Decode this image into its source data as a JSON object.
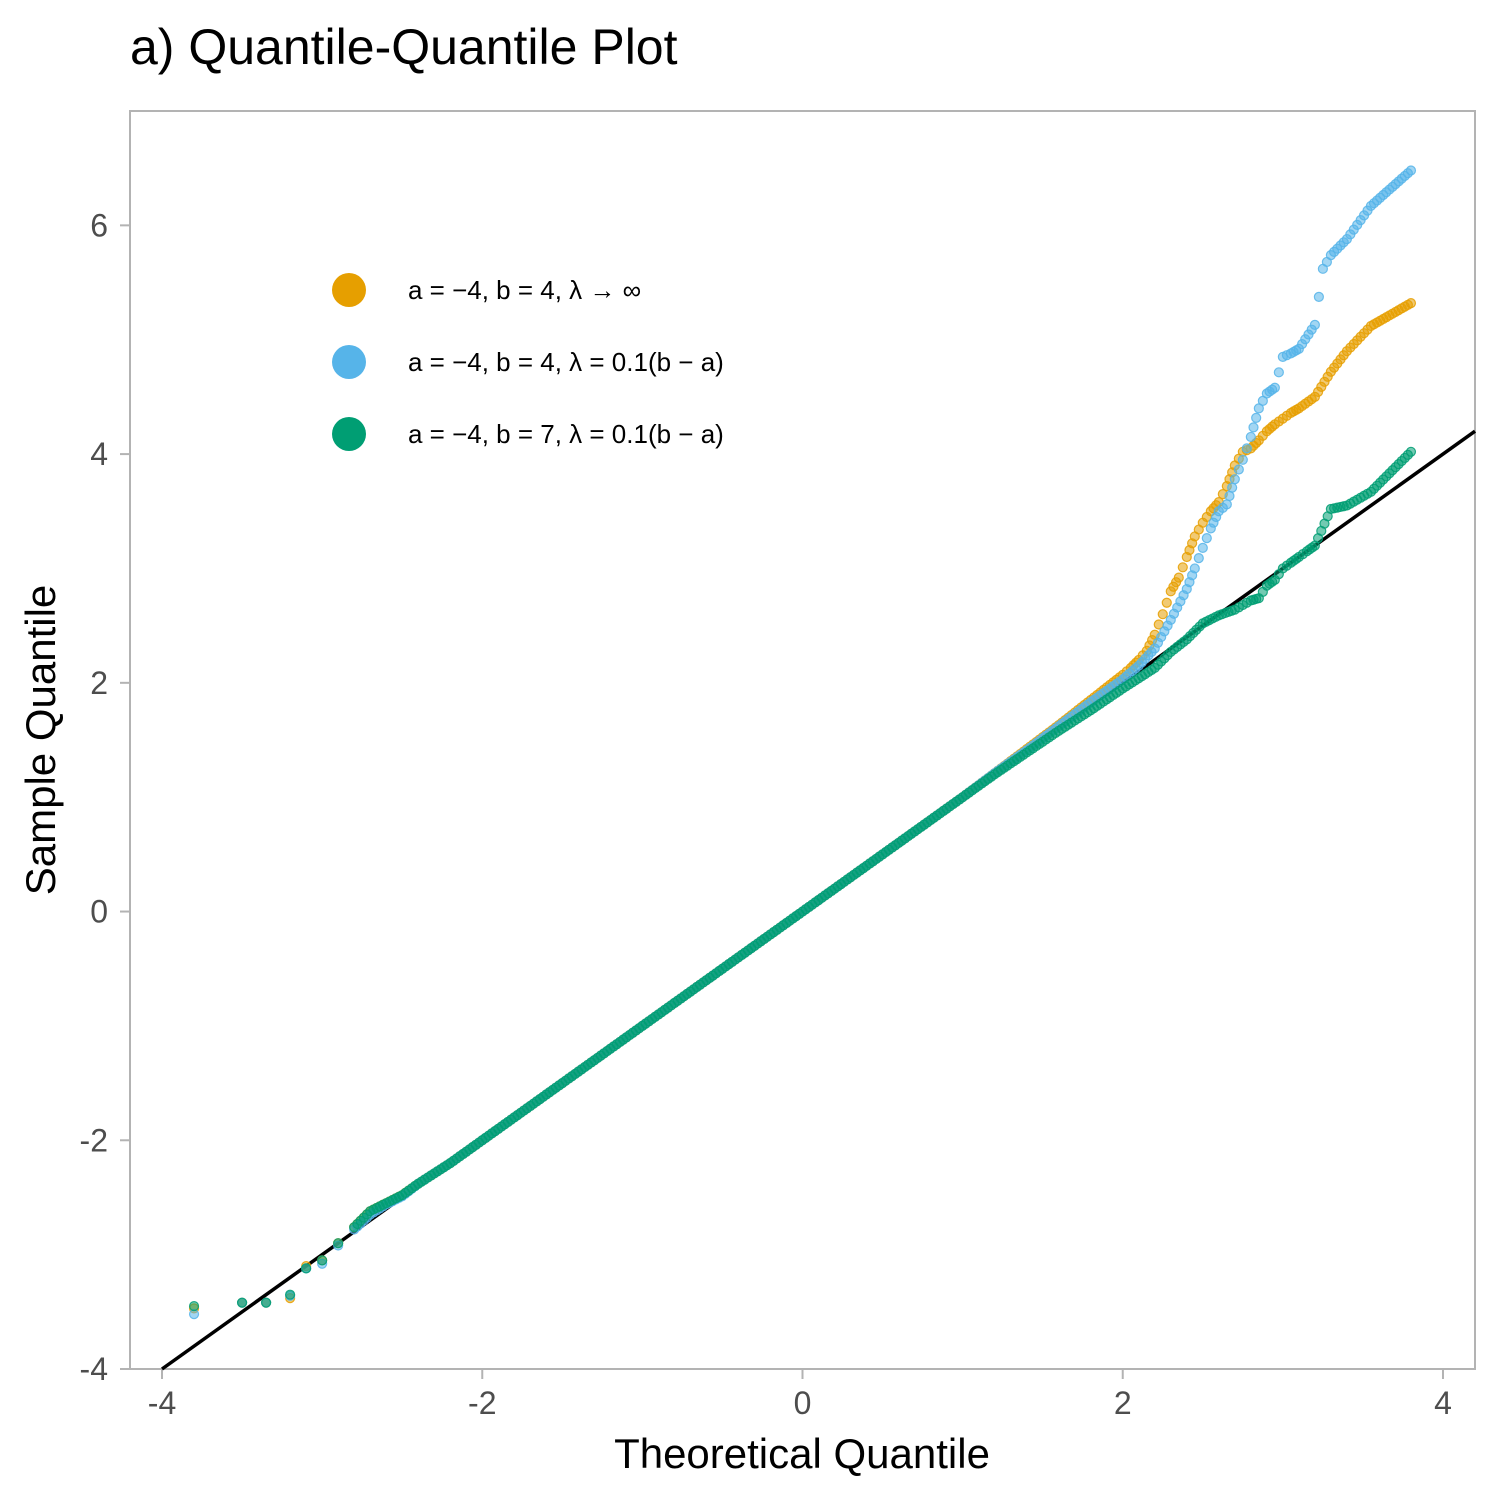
{
  "chart_data": {
    "type": "scatter",
    "title": "a) Quantile-Quantile Plot",
    "xlabel": "Theoretical Quantile",
    "ylabel": "Sample Quantile",
    "xlim": [
      -4.2,
      4.2
    ],
    "ylim": [
      -4,
      7
    ],
    "x_ticks": [
      -4,
      -2,
      0,
      2,
      4
    ],
    "x_tick_labels": [
      "-4",
      "-2",
      "0",
      "2",
      "4"
    ],
    "y_ticks": [
      -4,
      -2,
      0,
      2,
      4,
      6
    ],
    "y_tick_labels": [
      "-4",
      "-2",
      "0",
      "2",
      "4",
      "6"
    ],
    "grid": false,
    "legend_position": "top-left inside",
    "reference_line": {
      "intercept": 0,
      "slope": 1
    },
    "series": [
      {
        "name": "a = −4, b = 4, λ → ∞",
        "color": "#E69F00",
        "x": [
          -3.8,
          -3.5,
          -3.35,
          -3.2,
          -3.1,
          -3.0,
          -2.9,
          -2.8,
          -2.7,
          -2.6,
          -2.5,
          -2.4,
          -2.3,
          -2.2,
          -2.1,
          -2.0,
          -1.8,
          -1.6,
          -1.4,
          -1.2,
          -1.0,
          -0.8,
          -0.6,
          -0.4,
          -0.2,
          0.0,
          0.2,
          0.4,
          0.6,
          0.8,
          1.0,
          1.2,
          1.4,
          1.6,
          1.8,
          2.0,
          2.05,
          2.1,
          2.15,
          2.2,
          2.25,
          2.3,
          2.35,
          2.4,
          2.45,
          2.5,
          2.55,
          2.6,
          2.65,
          2.7,
          2.75,
          2.8,
          2.85,
          2.9,
          2.95,
          3.0,
          3.05,
          3.1,
          3.2,
          3.3,
          3.4,
          3.55,
          3.8
        ],
        "y": [
          -3.47,
          -3.42,
          -3.42,
          -3.38,
          -3.1,
          -3.05,
          -2.9,
          -2.76,
          -2.62,
          -2.55,
          -2.48,
          -2.38,
          -2.29,
          -2.2,
          -2.1,
          -2.0,
          -1.8,
          -1.6,
          -1.4,
          -1.2,
          -1.0,
          -0.8,
          -0.6,
          -0.4,
          -0.2,
          0.0,
          0.2,
          0.4,
          0.6,
          0.8,
          1.0,
          1.21,
          1.42,
          1.63,
          1.85,
          2.07,
          2.13,
          2.2,
          2.28,
          2.42,
          2.6,
          2.8,
          2.92,
          3.1,
          3.28,
          3.4,
          3.5,
          3.58,
          3.72,
          3.9,
          4.02,
          4.05,
          4.12,
          4.2,
          4.26,
          4.31,
          4.36,
          4.4,
          4.5,
          4.72,
          4.9,
          5.12,
          5.32
        ]
      },
      {
        "name": "a = −4, b = 4, λ = 0.1(b − a)",
        "color": "#56B4E9",
        "x": [
          -3.8,
          -3.5,
          -3.35,
          -3.2,
          -3.1,
          -3.0,
          -2.9,
          -2.8,
          -2.7,
          -2.6,
          -2.5,
          -2.4,
          -2.3,
          -2.2,
          -2.1,
          -2.0,
          -1.8,
          -1.6,
          -1.4,
          -1.2,
          -1.0,
          -0.8,
          -0.6,
          -0.4,
          -0.2,
          0.0,
          0.2,
          0.4,
          0.6,
          0.8,
          1.0,
          1.2,
          1.4,
          1.6,
          1.8,
          2.0,
          2.1,
          2.2,
          2.3,
          2.4,
          2.45,
          2.5,
          2.55,
          2.6,
          2.65,
          2.7,
          2.75,
          2.8,
          2.85,
          2.9,
          2.95,
          3.0,
          3.05,
          3.1,
          3.2,
          3.25,
          3.3,
          3.4,
          3.55,
          3.8
        ],
        "y": [
          -3.52,
          -3.42,
          -3.42,
          -3.36,
          -3.12,
          -3.08,
          -2.92,
          -2.78,
          -2.65,
          -2.56,
          -2.49,
          -2.38,
          -2.29,
          -2.2,
          -2.1,
          -2.0,
          -1.8,
          -1.6,
          -1.4,
          -1.2,
          -1.0,
          -0.8,
          -0.6,
          -0.4,
          -0.2,
          0.0,
          0.2,
          0.4,
          0.6,
          0.8,
          1.0,
          1.21,
          1.41,
          1.62,
          1.83,
          2.03,
          2.15,
          2.3,
          2.55,
          2.82,
          3.0,
          3.18,
          3.35,
          3.5,
          3.56,
          3.78,
          3.95,
          4.15,
          4.4,
          4.53,
          4.58,
          4.85,
          4.88,
          4.92,
          5.13,
          5.62,
          5.74,
          5.88,
          6.17,
          6.48
        ]
      },
      {
        "name": "a = −4, b = 7, λ = 0.1(b − a)",
        "color": "#009E73",
        "x": [
          -3.8,
          -3.5,
          -3.35,
          -3.2,
          -3.1,
          -3.0,
          -2.9,
          -2.8,
          -2.7,
          -2.6,
          -2.5,
          -2.4,
          -2.3,
          -2.2,
          -2.1,
          -2.0,
          -1.8,
          -1.6,
          -1.4,
          -1.2,
          -1.0,
          -0.8,
          -0.6,
          -0.4,
          -0.2,
          0.0,
          0.2,
          0.4,
          0.6,
          0.8,
          1.0,
          1.2,
          1.4,
          1.6,
          1.8,
          2.0,
          2.1,
          2.2,
          2.3,
          2.4,
          2.5,
          2.6,
          2.7,
          2.75,
          2.8,
          2.85,
          2.9,
          2.95,
          3.0,
          3.05,
          3.1,
          3.15,
          3.2,
          3.3,
          3.4,
          3.55,
          3.8
        ],
        "y": [
          -3.45,
          -3.42,
          -3.42,
          -3.35,
          -3.12,
          -3.05,
          -2.9,
          -2.76,
          -2.62,
          -2.55,
          -2.48,
          -2.38,
          -2.29,
          -2.2,
          -2.1,
          -2.0,
          -1.8,
          -1.6,
          -1.4,
          -1.2,
          -1.0,
          -0.8,
          -0.6,
          -0.4,
          -0.2,
          0.0,
          0.2,
          0.4,
          0.6,
          0.8,
          1.0,
          1.2,
          1.39,
          1.58,
          1.76,
          1.95,
          2.04,
          2.13,
          2.27,
          2.38,
          2.52,
          2.59,
          2.64,
          2.68,
          2.72,
          2.74,
          2.85,
          2.9,
          3.0,
          3.05,
          3.1,
          3.15,
          3.2,
          3.52,
          3.55,
          3.67,
          4.02
        ]
      }
    ]
  }
}
